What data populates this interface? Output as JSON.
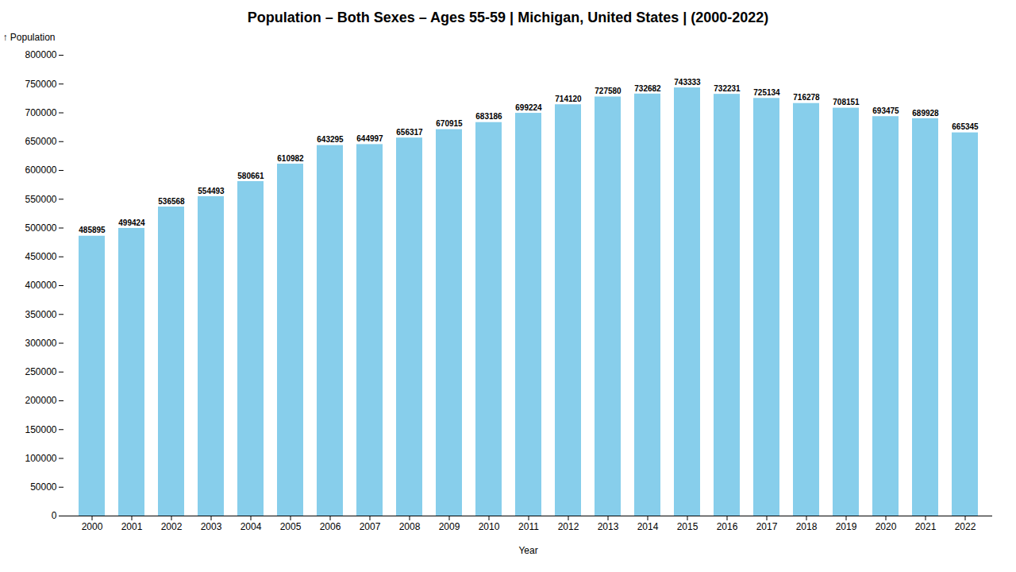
{
  "chart_data": {
    "type": "bar",
    "title": "Population – Both Sexes – Ages 55-59 | Michigan, United States |   (2000-2022)",
    "xlabel": "Year",
    "ylabel": "Population",
    "categories": [
      "2000",
      "2001",
      "2002",
      "2003",
      "2004",
      "2005",
      "2006",
      "2007",
      "2008",
      "2009",
      "2010",
      "2011",
      "2012",
      "2013",
      "2014",
      "2015",
      "2016",
      "2017",
      "2018",
      "2019",
      "2020",
      "2021",
      "2022"
    ],
    "values": [
      485895,
      499424,
      536568,
      554493,
      580661,
      610982,
      643295,
      644997,
      656317,
      670915,
      683186,
      699224,
      714120,
      727580,
      732682,
      743333,
      732231,
      725134,
      716278,
      708151,
      693475,
      689928,
      665345
    ],
    "color": "#87CEEB",
    "ylim": [
      0,
      800000
    ],
    "yticks": [
      0,
      50000,
      100000,
      150000,
      200000,
      250000,
      300000,
      350000,
      400000,
      450000,
      500000,
      550000,
      600000,
      650000,
      700000,
      750000,
      800000
    ],
    "grid": false,
    "data_labels": true
  }
}
